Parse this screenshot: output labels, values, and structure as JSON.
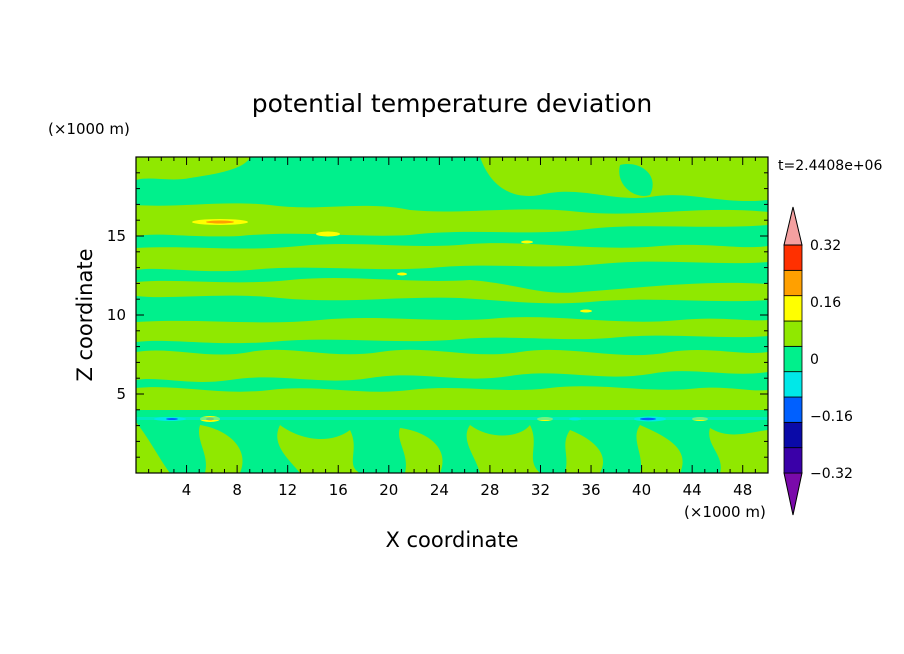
{
  "chart_data": {
    "type": "heatmap",
    "title": "potential temperature deviation",
    "xlabel": "X coordinate",
    "ylabel": "Z coordinate",
    "x_unit": "(×1000 m)",
    "y_unit": "(×1000 m)",
    "time_label": "t=2.4408e+06",
    "xlim": [
      0,
      50
    ],
    "ylim": [
      0,
      20
    ],
    "x_ticks": [
      4,
      8,
      12,
      16,
      20,
      24,
      28,
      32,
      36,
      40,
      44,
      48
    ],
    "y_ticks": [
      5,
      10,
      15
    ],
    "grid": false,
    "colorbar": {
      "levels": [
        -0.4,
        -0.32,
        -0.24,
        -0.16,
        -0.08,
        0,
        0.08,
        0.16,
        0.24,
        0.32,
        0.4
      ],
      "colors": [
        "#7a0aaa",
        "#3a00a8",
        "#0a0aa8",
        "#0060ff",
        "#00e8e8",
        "#00f08c",
        "#90e800",
        "#ffff00",
        "#ffa000",
        "#ff3000",
        "#f4a0a0"
      ],
      "tick_labels": [
        "0.32",
        "0.16",
        "0",
        "-0.16",
        "-0.32"
      ],
      "tick_values": [
        0.32,
        0.16,
        0,
        -0.16,
        -0.32
      ],
      "extend": "both"
    },
    "field_summary": {
      "background_value": "0 to 0.08",
      "dominant_bands": "0 and 0.08 contours alternating in horizontal layers",
      "extremes": "small 0.16 to 0.24 patches near z=3.5 and z=15.8; small -0.08 to -0.16 patches near z=3.5"
    }
  }
}
